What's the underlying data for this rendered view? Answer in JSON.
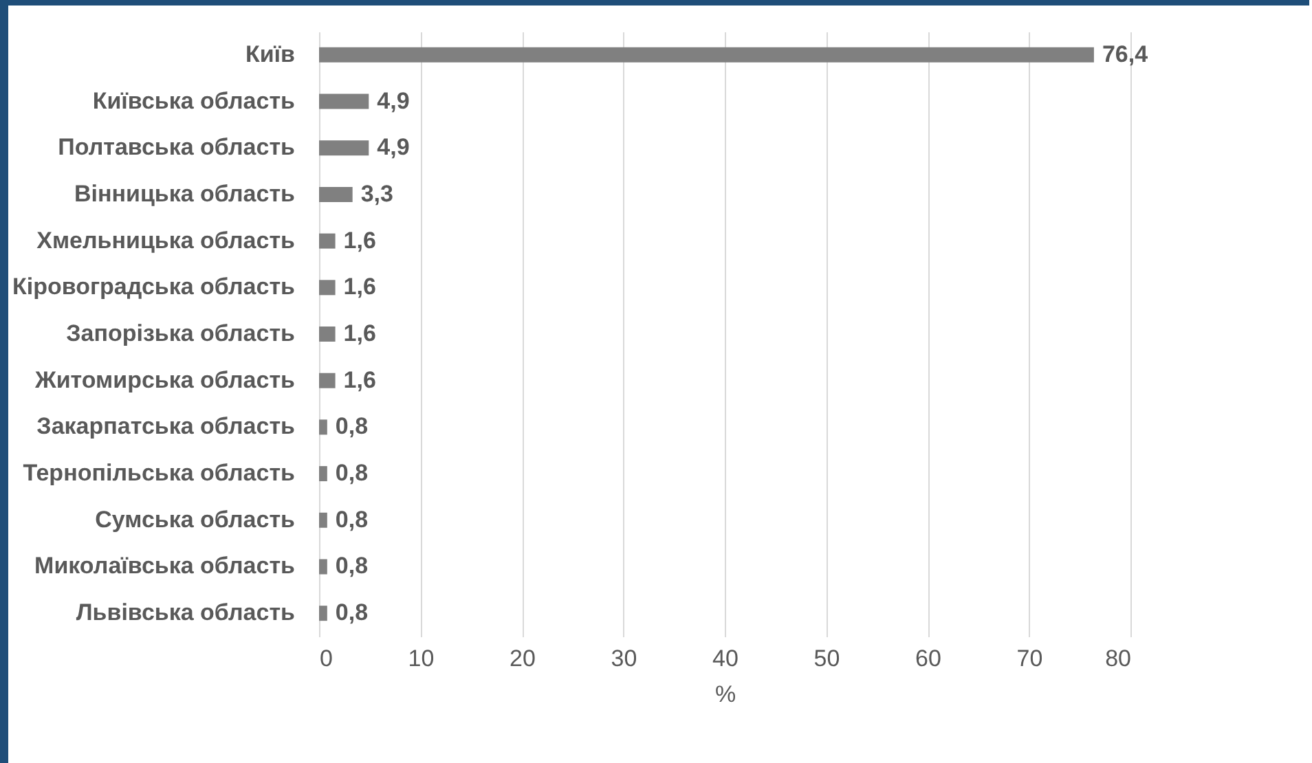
{
  "chart_data": {
    "type": "bar",
    "orientation": "horizontal",
    "xlabel": "%",
    "categories": [
      "Київ",
      "Київська область",
      "Полтавська область",
      "Вінницька область",
      "Хмельницька область",
      "Кіровоградська область",
      "Запорізька область",
      "Житомирська область",
      "Закарпатська область",
      "Тернопільська область",
      "Сумська область",
      "Миколаївська область",
      "Львівська область"
    ],
    "values": [
      76.4,
      4.9,
      4.9,
      3.3,
      1.6,
      1.6,
      1.6,
      1.6,
      0.8,
      0.8,
      0.8,
      0.8,
      0.8
    ],
    "value_labels": [
      "76,4",
      "4,9",
      "4,9",
      "3,3",
      "1,6",
      "1,6",
      "1,6",
      "1,6",
      "0,8",
      "0,8",
      "0,8",
      "0,8",
      "0,8"
    ],
    "color": "#808080",
    "xlim": [
      0,
      80
    ],
    "xticks": [
      0,
      10,
      20,
      30,
      40,
      50,
      60,
      70,
      80
    ],
    "grid": "x"
  }
}
